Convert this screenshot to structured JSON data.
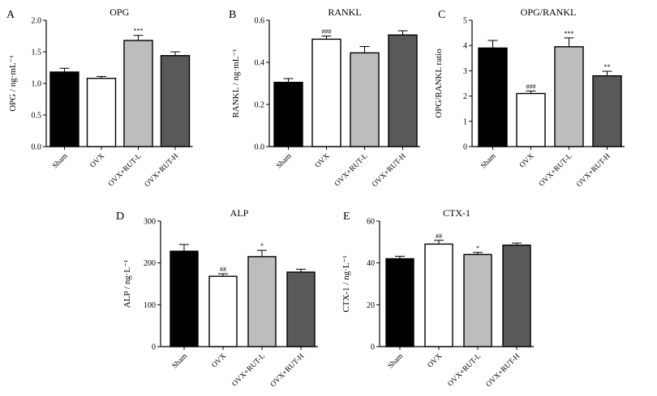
{
  "colors": {
    "Sham": "#000000",
    "OVX": "#ffffff",
    "OVX+RUT-L": "#bdbdbd",
    "OVX+RUT-H": "#595959"
  },
  "chart_data": [
    {
      "letter": "A",
      "type": "bar",
      "title": "OPG",
      "ylabel": "OPG / ng·mL⁻¹",
      "categories": [
        "Sham",
        "OVX",
        "OVX+RUT-L",
        "OVX+RUT-H"
      ],
      "values": [
        1.18,
        1.08,
        1.68,
        1.44
      ],
      "errors": [
        0.06,
        0.03,
        0.08,
        0.06
      ],
      "significance": [
        "",
        "",
        "***",
        ""
      ],
      "ylim": [
        0,
        2.0
      ],
      "yticks": [
        "0.0",
        "0.5",
        "1.0",
        "1.5",
        "2.0"
      ]
    },
    {
      "letter": "B",
      "type": "bar",
      "title": "RANKL",
      "ylabel": "RANKL / ng·mL⁻¹",
      "categories": [
        "Sham",
        "OVX",
        "OVX+RUT-L",
        "OVX+RUT-H"
      ],
      "values": [
        0.305,
        0.51,
        0.445,
        0.53
      ],
      "errors": [
        0.018,
        0.015,
        0.03,
        0.02
      ],
      "significance": [
        "",
        "###",
        "",
        ""
      ],
      "ylim": [
        0,
        0.6
      ],
      "yticks": [
        "0.0",
        "0.2",
        "0.4",
        "0.6"
      ]
    },
    {
      "letter": "C",
      "type": "bar",
      "title": "OPG/RANKL",
      "ylabel": "OPG/RANKL ratio",
      "categories": [
        "Sham",
        "OVX",
        "OVX+RUT-L",
        "OVX+RUT-H"
      ],
      "values": [
        3.9,
        2.1,
        3.95,
        2.8
      ],
      "errors": [
        0.3,
        0.1,
        0.35,
        0.18
      ],
      "significance": [
        "",
        "###",
        "***",
        "**"
      ],
      "ylim": [
        0,
        5
      ],
      "yticks": [
        "0",
        "1",
        "2",
        "3",
        "4",
        "5"
      ]
    },
    {
      "letter": "D",
      "type": "bar",
      "title": "ALP",
      "ylabel": "ALP / ng·L⁻¹",
      "categories": [
        "Sham",
        "OVX",
        "OVX+RUT-L",
        "OVX+RUT-H"
      ],
      "values": [
        228,
        168,
        215,
        178
      ],
      "errors": [
        16,
        6,
        15,
        7
      ],
      "significance": [
        "",
        "##",
        "*",
        ""
      ],
      "ylim": [
        0,
        300
      ],
      "yticks": [
        "0",
        "100",
        "200",
        "300"
      ]
    },
    {
      "letter": "E",
      "type": "bar",
      "title": "CTX-1",
      "ylabel": "CTX-1 / ng·L⁻¹",
      "categories": [
        "Sham",
        "OVX",
        "OVX+RUT-L",
        "OVX+RUT-H"
      ],
      "values": [
        42,
        49,
        44,
        48.5
      ],
      "errors": [
        1.2,
        1.8,
        1.0,
        1.0
      ],
      "significance": [
        "",
        "##",
        "*",
        ""
      ],
      "ylim": [
        0,
        60
      ],
      "yticks": [
        "0",
        "20",
        "40",
        "60"
      ]
    }
  ]
}
